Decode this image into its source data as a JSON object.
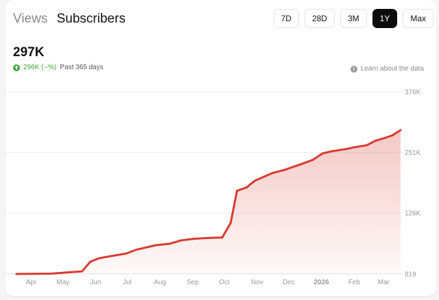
{
  "tabs": [
    {
      "label": "Views",
      "active": false
    },
    {
      "label": "Subscribers",
      "active": true
    }
  ],
  "ranges": [
    {
      "label": "7D",
      "active": false
    },
    {
      "label": "28D",
      "active": false
    },
    {
      "label": "3M",
      "active": false
    },
    {
      "label": "1Y",
      "active": true
    },
    {
      "label": "Max",
      "active": false
    }
  ],
  "summary": {
    "total": "297K",
    "delta": "296K (--%)",
    "period": "Past 365 days",
    "learn_more": "Learn about the data"
  },
  "colors": {
    "line": "#d93b30",
    "positive": "#3fa535",
    "active_button": "#0b0b0b"
  },
  "chart_data": {
    "type": "area",
    "title": "",
    "xlabel": "",
    "ylabel": "",
    "y_axis_position": "right",
    "grid": true,
    "ylim": [
      819,
      376000
    ],
    "y_ticks": [
      {
        "value": 376000,
        "label": "376K"
      },
      {
        "value": 251000,
        "label": "251K"
      },
      {
        "value": 126000,
        "label": "126K"
      },
      {
        "value": 819,
        "label": "819"
      }
    ],
    "x_ticks": [
      {
        "label": "Apr",
        "x": "2025-04-09",
        "bold": false
      },
      {
        "label": "May",
        "x": "2025-05-09",
        "bold": false
      },
      {
        "label": "Jun",
        "x": "2025-06-09",
        "bold": false
      },
      {
        "label": "Jul",
        "x": "2025-07-09",
        "bold": false
      },
      {
        "label": "Aug",
        "x": "2025-08-09",
        "bold": false
      },
      {
        "label": "Sep",
        "x": "2025-09-09",
        "bold": false
      },
      {
        "label": "Oct",
        "x": "2025-10-09",
        "bold": false
      },
      {
        "label": "Nov",
        "x": "2025-11-09",
        "bold": false
      },
      {
        "label": "Dec",
        "x": "2025-12-09",
        "bold": false
      },
      {
        "label": "2026",
        "x": "2026-01-09",
        "bold": true
      },
      {
        "label": "Feb",
        "x": "2026-02-09",
        "bold": false
      },
      {
        "label": "Mar",
        "x": "2026-03-09",
        "bold": false
      }
    ],
    "x_range": [
      "2025-03-26",
      "2026-03-25"
    ],
    "points": [
      {
        "x": "2025-03-26",
        "y": 819
      },
      {
        "x": "2025-04-28",
        "y": 1500
      },
      {
        "x": "2025-05-13",
        "y": 4000
      },
      {
        "x": "2025-05-27",
        "y": 6000
      },
      {
        "x": "2025-06-04",
        "y": 26000
      },
      {
        "x": "2025-06-12",
        "y": 33000
      },
      {
        "x": "2025-06-22",
        "y": 37000
      },
      {
        "x": "2025-07-08",
        "y": 43000
      },
      {
        "x": "2025-07-18",
        "y": 51000
      },
      {
        "x": "2025-08-05",
        "y": 60000
      },
      {
        "x": "2025-08-18",
        "y": 63000
      },
      {
        "x": "2025-08-29",
        "y": 70000
      },
      {
        "x": "2025-09-09",
        "y": 73000
      },
      {
        "x": "2025-09-24",
        "y": 75000
      },
      {
        "x": "2025-10-07",
        "y": 76000
      },
      {
        "x": "2025-10-15",
        "y": 106000
      },
      {
        "x": "2025-10-21",
        "y": 172000
      },
      {
        "x": "2025-10-30",
        "y": 179000
      },
      {
        "x": "2025-11-07",
        "y": 193000
      },
      {
        "x": "2025-11-24",
        "y": 209000
      },
      {
        "x": "2025-12-05",
        "y": 215000
      },
      {
        "x": "2025-12-22",
        "y": 228000
      },
      {
        "x": "2026-01-01",
        "y": 236000
      },
      {
        "x": "2026-01-10",
        "y": 249000
      },
      {
        "x": "2026-01-20",
        "y": 254000
      },
      {
        "x": "2026-02-01",
        "y": 258000
      },
      {
        "x": "2026-02-10",
        "y": 262000
      },
      {
        "x": "2026-02-21",
        "y": 266000
      },
      {
        "x": "2026-03-01",
        "y": 275000
      },
      {
        "x": "2026-03-10",
        "y": 281000
      },
      {
        "x": "2026-03-17",
        "y": 286000
      },
      {
        "x": "2026-03-25",
        "y": 297000
      }
    ]
  }
}
